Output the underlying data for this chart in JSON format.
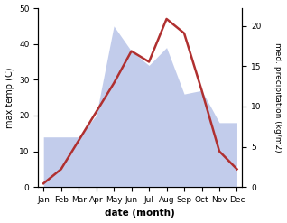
{
  "months": [
    "Jan",
    "Feb",
    "Mar",
    "Apr",
    "May",
    "Jun",
    "Jul",
    "Aug",
    "Sep",
    "Oct",
    "Nov",
    "Dec"
  ],
  "temperature": [
    1,
    5,
    13,
    21,
    29,
    38,
    35,
    47,
    43,
    27,
    10,
    5
  ],
  "precip_left_scale": [
    14,
    14,
    14,
    20,
    45,
    38,
    34,
    39,
    26,
    27,
    18,
    18
  ],
  "temp_color": "#b03030",
  "precip_fill_color": "#b8c4e8",
  "ylim_left": [
    0,
    50
  ],
  "ylim_right": [
    0,
    22.2
  ],
  "xlabel": "date (month)",
  "ylabel_left": "max temp (C)",
  "ylabel_right": "med. precipitation (kg/m2)",
  "line_width": 1.8,
  "yticks_left": [
    0,
    10,
    20,
    30,
    40,
    50
  ],
  "yticks_right": [
    0,
    5,
    10,
    15,
    20
  ]
}
